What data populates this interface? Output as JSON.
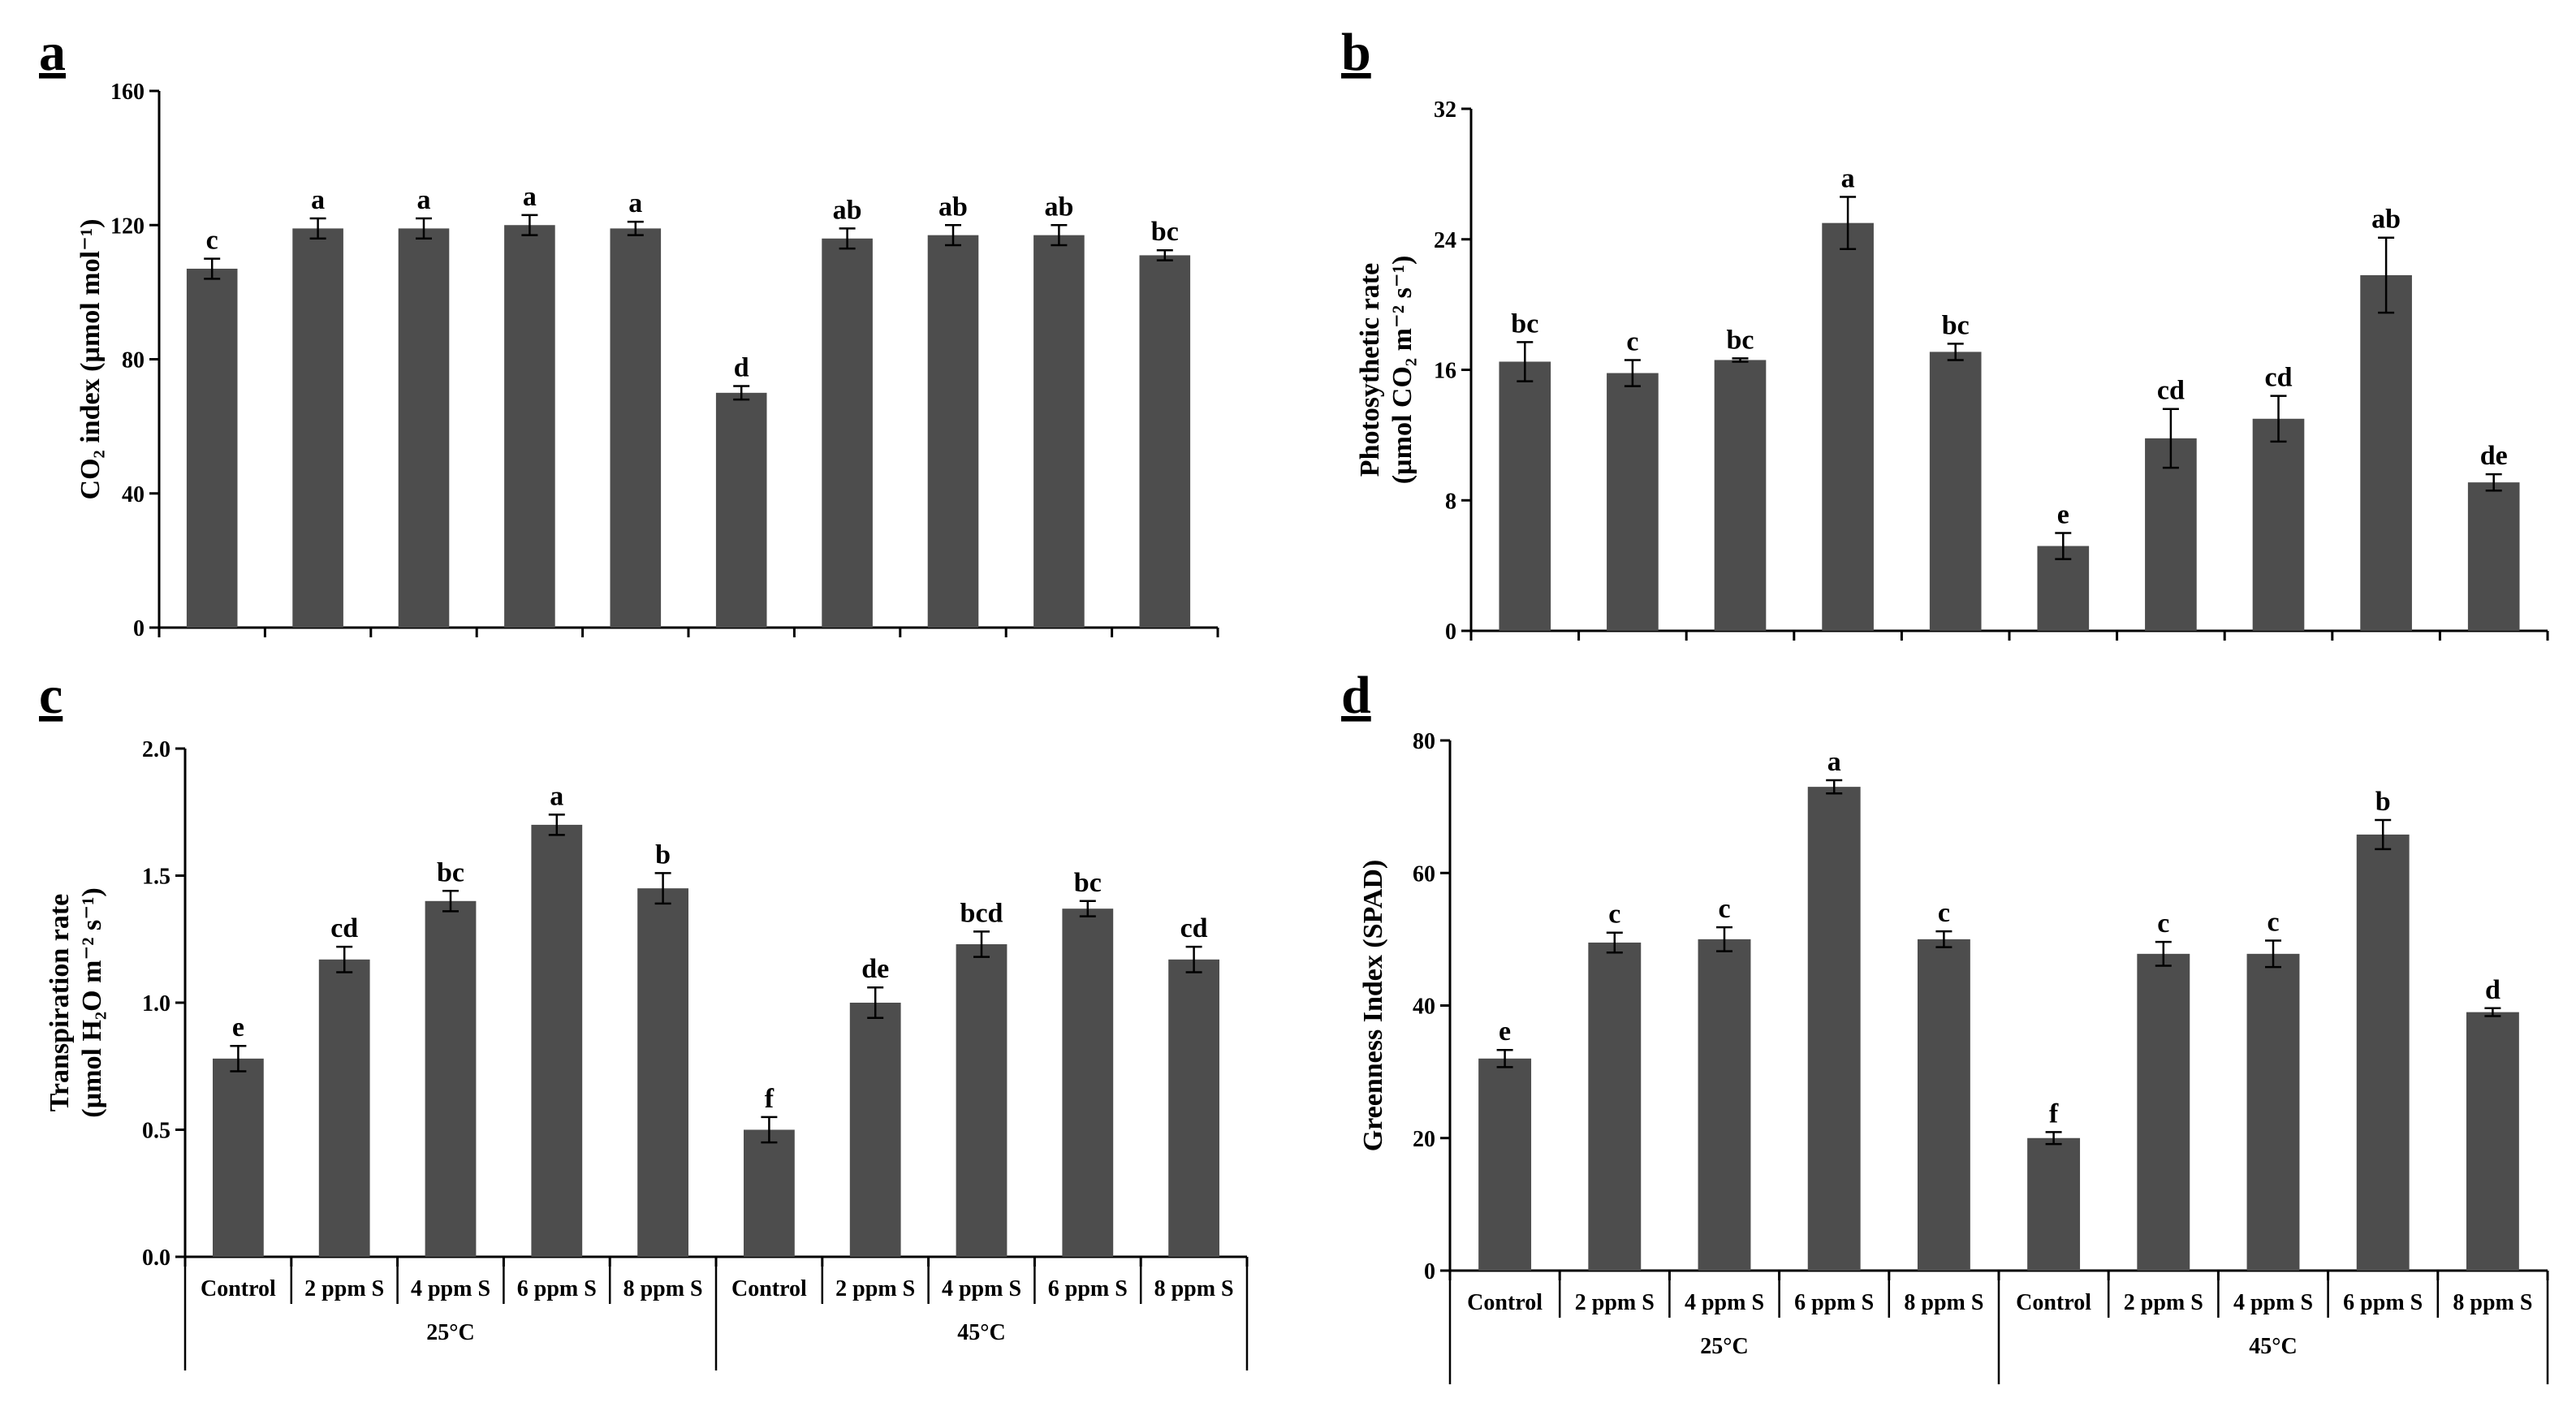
{
  "colors": {
    "bar": "#4d4d4d",
    "axis": "#000000",
    "text": "#000000"
  },
  "groups": [
    "25°C",
    "45°C"
  ],
  "categories": [
    "Control",
    "2 ppm S",
    "4 ppm S",
    "6 ppm S",
    "8 ppm S",
    "Control",
    "2 ppm S",
    "4 ppm S",
    "6 ppm S",
    "8 ppm S"
  ],
  "chart_data": [
    {
      "panel": "a",
      "type": "bar",
      "ylabel": "CO₂ index (µmol mol⁻¹)",
      "ylim": [
        0,
        160
      ],
      "yticks": [
        0,
        40,
        80,
        120,
        160
      ],
      "tick_labels": [
        "0",
        "40",
        "80",
        "120",
        "160"
      ],
      "values": [
        107,
        119,
        119,
        120,
        119,
        70,
        116,
        117,
        117,
        111
      ],
      "errors": [
        3,
        3,
        3,
        3,
        2,
        2,
        3,
        3,
        3,
        1.5
      ],
      "letters": [
        "c",
        "a",
        "a",
        "a",
        "a",
        "d",
        "ab",
        "ab",
        "ab",
        "bc"
      ],
      "show_categories": false
    },
    {
      "panel": "b",
      "type": "bar",
      "ylabel_lines": [
        "Photosythetic rate",
        "(µmol CO₂ m⁻² s⁻¹)"
      ],
      "ylim": [
        0,
        32
      ],
      "yticks": [
        0,
        8,
        16,
        24,
        32
      ],
      "tick_labels": [
        "0",
        "8",
        "16",
        "24",
        "32"
      ],
      "values": [
        16.5,
        15.8,
        16.6,
        25,
        17.1,
        5.2,
        11.8,
        13,
        21.8,
        9.1
      ],
      "errors": [
        1.2,
        0.8,
        0.1,
        1.6,
        0.5,
        0.8,
        1.8,
        1.4,
        2.3,
        0.5
      ],
      "letters": [
        "bc",
        "c",
        "bc",
        "a",
        "bc",
        "e",
        "cd",
        "cd",
        "ab",
        "de"
      ],
      "show_categories": false
    },
    {
      "panel": "c",
      "type": "bar",
      "ylabel_lines": [
        "Transpiration rate",
        "(µmol H₂O m⁻² s⁻¹)"
      ],
      "ylim": [
        0,
        2.0
      ],
      "yticks": [
        0,
        0.5,
        1.0,
        1.5,
        2.0
      ],
      "tick_labels": [
        "0.0",
        "0.5",
        "1.0",
        "1.5",
        "2.0"
      ],
      "values": [
        0.78,
        1.17,
        1.4,
        1.7,
        1.45,
        0.5,
        1.0,
        1.23,
        1.37,
        1.17
      ],
      "errors": [
        0.05,
        0.05,
        0.04,
        0.04,
        0.06,
        0.05,
        0.06,
        0.05,
        0.03,
        0.05
      ],
      "letters": [
        "e",
        "cd",
        "bc",
        "a",
        "b",
        "f",
        "de",
        "bcd",
        "bc",
        "cd"
      ],
      "show_categories": true
    },
    {
      "panel": "d",
      "type": "bar",
      "ylabel": "Greenness Index (SPAD)",
      "ylim": [
        0,
        80
      ],
      "yticks": [
        0,
        20,
        40,
        60,
        80
      ],
      "tick_labels": [
        "0",
        "20",
        "40",
        "60",
        "80"
      ],
      "values": [
        32,
        49.5,
        50,
        73,
        50,
        20,
        47.8,
        47.8,
        65.8,
        39
      ],
      "errors": [
        1.3,
        1.5,
        1.8,
        1,
        1.2,
        0.9,
        1.8,
        2,
        2.2,
        0.6
      ],
      "letters": [
        "e",
        "c",
        "c",
        "a",
        "c",
        "f",
        "c",
        "c",
        "b",
        "d"
      ],
      "show_categories": true
    }
  ]
}
